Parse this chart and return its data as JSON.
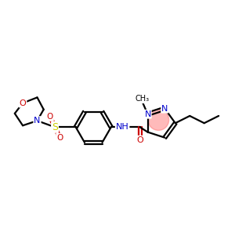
{
  "bg_color": "#ffffff",
  "atom_colors": {
    "N": "#0000cc",
    "O": "#cc0000",
    "S": "#cccc00",
    "C": "#000000"
  },
  "bond_color": "#000000",
  "highlight_color": "#ff6666",
  "bond_lw": 1.6,
  "font_size": 8.0
}
